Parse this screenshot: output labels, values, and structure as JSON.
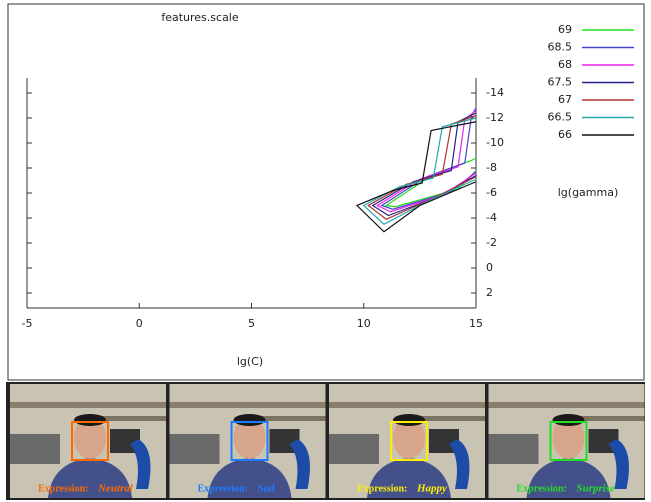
{
  "chart_data": {
    "type": "contour",
    "title": "features.scale",
    "xlabel": "lg(C)",
    "ylabel": "lg(gamma)",
    "xlim": [
      -5,
      15
    ],
    "xticks": [
      -5,
      0,
      5,
      10,
      15
    ],
    "ylim": [
      -15.2,
      3.2
    ],
    "y_reversed": true,
    "yticks": [
      -14,
      -12,
      -10,
      -8,
      -6,
      -4,
      -2,
      0,
      2
    ],
    "series": [
      {
        "name": "69",
        "color": "#22dd22",
        "x": [
          15,
          14.8,
          13.1,
          11.0,
          11.4,
          14.2,
          15
        ],
        "y": [
          -8.8,
          -8.6,
          -7.5,
          -5.0,
          -4.9,
          -6.3,
          -7.8
        ]
      },
      {
        "name": "68.5",
        "color": "#4444cc",
        "x": [
          15,
          14.8,
          14.5,
          12.8,
          10.8,
          11.3,
          13.9,
          15
        ],
        "y": [
          -12.8,
          -12.2,
          -8.4,
          -7.3,
          -5.0,
          -4.7,
          -6.1,
          -7.7
        ]
      },
      {
        "name": "68",
        "color": "#ee22ee",
        "x": [
          15,
          14.5,
          14.2,
          12.5,
          10.6,
          11.2,
          13.6,
          15
        ],
        "y": [
          -12.6,
          -11.9,
          -8.1,
          -7.1,
          -5.0,
          -4.5,
          -5.9,
          -7.6
        ]
      },
      {
        "name": "67.5",
        "color": "#222288",
        "x": [
          15,
          14.2,
          13.9,
          12.2,
          10.4,
          11.1,
          13.3,
          15
        ],
        "y": [
          -12.4,
          -11.7,
          -7.8,
          -6.9,
          -5.0,
          -4.2,
          -5.7,
          -7.4
        ]
      },
      {
        "name": "67",
        "color": "#aa3333",
        "x": [
          15,
          13.9,
          13.5,
          11.9,
          10.2,
          11.0,
          13.0,
          15
        ],
        "y": [
          -12.2,
          -11.5,
          -7.5,
          -6.7,
          -5.0,
          -3.9,
          -5.5,
          -7.3
        ]
      },
      {
        "name": "66.5",
        "color": "#22aaaa",
        "x": [
          15,
          13.5,
          13.1,
          11.6,
          10.0,
          10.9,
          12.8,
          15
        ],
        "y": [
          -12.0,
          -11.3,
          -7.2,
          -6.5,
          -5.0,
          -3.5,
          -5.3,
          -7.1
        ]
      },
      {
        "name": "66",
        "color": "#111111",
        "x": [
          15,
          13.0,
          12.6,
          11.3,
          9.7,
          10.9,
          12.5,
          15
        ],
        "y": [
          -11.7,
          -11.0,
          -6.8,
          -6.2,
          -5.0,
          -2.9,
          -5.0,
          -6.9
        ]
      }
    ]
  },
  "frames": [
    {
      "caption": "Expression:",
      "expression": "Neutral",
      "color": "#ff6a00"
    },
    {
      "caption": "Expression:",
      "expression": "Sad",
      "color": "#1e7bff"
    },
    {
      "caption": "Expression:",
      "expression": "Happy",
      "color": "#ffee00"
    },
    {
      "caption": "Expression:",
      "expression": "Surprise",
      "color": "#22dd22"
    }
  ]
}
